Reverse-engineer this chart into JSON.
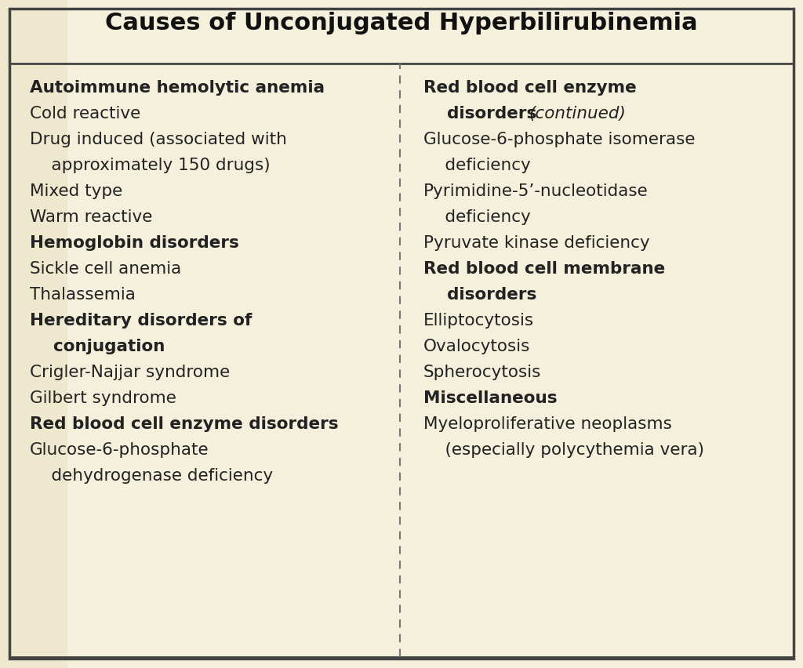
{
  "title": "Causes of Unconjugated Hyperbilirubinemia",
  "bg_color": "#f5f0dc",
  "left_strip_color": "#ede8ce",
  "title_color": "#111111",
  "text_color": "#222222",
  "border_color": "#444444",
  "divider_color": "#777777",
  "left_items": [
    {
      "text": "Autoimmune hemolytic anemia",
      "bold": true,
      "lines": 1
    },
    {
      "text": "Cold reactive",
      "bold": false,
      "lines": 1
    },
    {
      "text": "Drug induced (associated with",
      "bold": false,
      "lines": 1
    },
    {
      "text": "    approximately 150 drugs)",
      "bold": false,
      "lines": 1
    },
    {
      "text": "Mixed type",
      "bold": false,
      "lines": 1
    },
    {
      "text": "Warm reactive",
      "bold": false,
      "lines": 1
    },
    {
      "text": "Hemoglobin disorders",
      "bold": true,
      "lines": 1
    },
    {
      "text": "Sickle cell anemia",
      "bold": false,
      "lines": 1
    },
    {
      "text": "Thalassemia",
      "bold": false,
      "lines": 1
    },
    {
      "text": "Hereditary disorders of",
      "bold": true,
      "lines": 1
    },
    {
      "text": "    conjugation",
      "bold": true,
      "lines": 1
    },
    {
      "text": "Crigler-Najjar syndrome",
      "bold": false,
      "lines": 1
    },
    {
      "text": "Gilbert syndrome",
      "bold": false,
      "lines": 1
    },
    {
      "text": "Red blood cell enzyme disorders",
      "bold": true,
      "lines": 1
    },
    {
      "text": "Glucose-6-phosphate",
      "bold": false,
      "lines": 1
    },
    {
      "text": "    dehydrogenase deficiency",
      "bold": false,
      "lines": 1
    }
  ],
  "right_items": [
    {
      "text": "Red blood cell enzyme",
      "bold": true,
      "italic": false,
      "lines": 1
    },
    {
      "text": "    disorders ",
      "bold": true,
      "italic": false,
      "italic_suffix": "(continued)",
      "lines": 1
    },
    {
      "text": "Glucose-6-phosphate isomerase",
      "bold": false,
      "lines": 1
    },
    {
      "text": "    deficiency",
      "bold": false,
      "lines": 1
    },
    {
      "text": "Pyrimidine-5’-nucleotidase",
      "bold": false,
      "lines": 1
    },
    {
      "text": "    deficiency",
      "bold": false,
      "lines": 1
    },
    {
      "text": "Pyruvate kinase deficiency",
      "bold": false,
      "lines": 1
    },
    {
      "text": "Red blood cell membrane",
      "bold": true,
      "lines": 1
    },
    {
      "text": "    disorders",
      "bold": true,
      "lines": 1
    },
    {
      "text": "Elliptocytosis",
      "bold": false,
      "lines": 1
    },
    {
      "text": "Ovalocytosis",
      "bold": false,
      "lines": 1
    },
    {
      "text": "Spherocytosis",
      "bold": false,
      "lines": 1
    },
    {
      "text": "Miscellaneous",
      "bold": true,
      "lines": 1
    },
    {
      "text": "Myeloproliferative neoplasms",
      "bold": false,
      "lines": 1
    },
    {
      "text": "    (especially polycythemia vera)",
      "bold": false,
      "lines": 1
    }
  ],
  "figsize": [
    10.24,
    8.53
  ],
  "dpi": 100,
  "fontsize": 15.5,
  "title_fontsize": 22
}
